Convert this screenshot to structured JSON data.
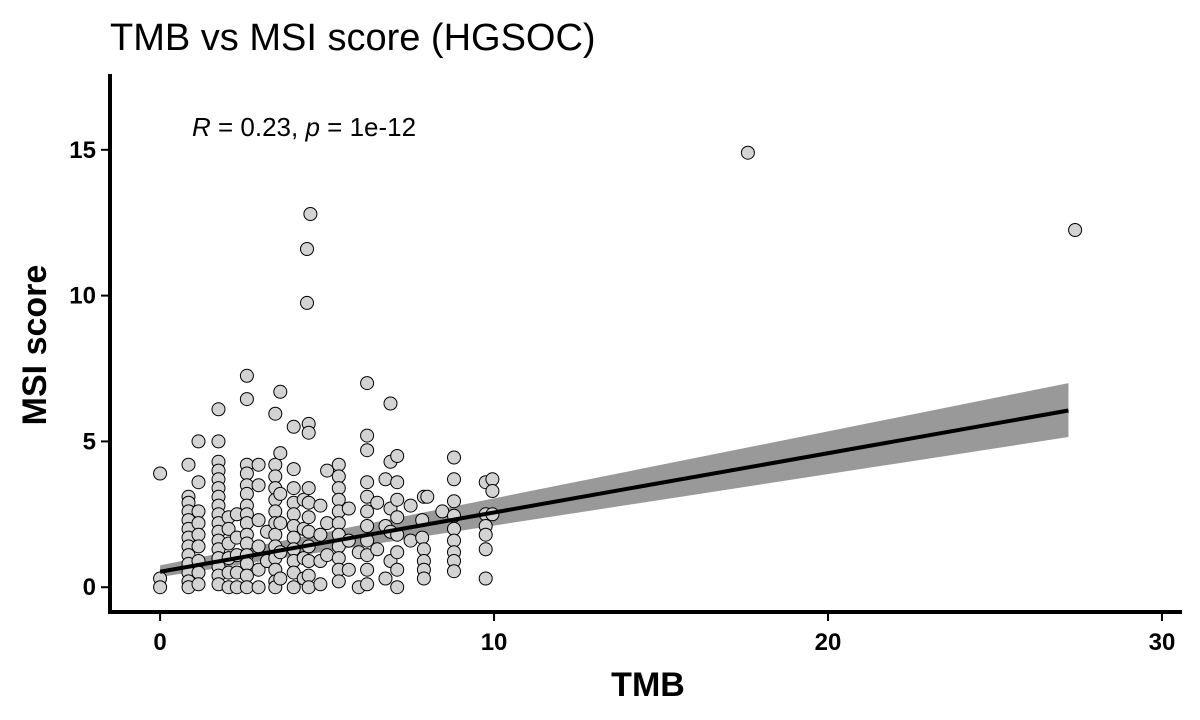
{
  "chart_data": {
    "type": "scatter",
    "title": "TMB vs MSI score (HGSOC)",
    "xlabel": "TMB",
    "ylabel": "MSI score",
    "xlim": [
      -1.5,
      30.6
    ],
    "ylim": [
      -0.85,
      17.6
    ],
    "x_ticks": [
      0,
      10,
      20,
      30
    ],
    "y_ticks": [
      0,
      5,
      10,
      15
    ],
    "annotation": {
      "r_symbol": "R",
      "r_text": " = 0.23, ",
      "p_symbol": "p",
      "p_text": " = 1e-12"
    },
    "colors": {
      "point_fill": "#d3d3d3",
      "point_stroke": "#000000",
      "fit_line": "#000000",
      "confidence_band": "#999999"
    },
    "regression": {
      "slope": 0.2033,
      "intercept": 0.53,
      "x_range": [
        0,
        27.2
      ],
      "ci_at_start": [
        0.35,
        0.75
      ],
      "ci_at_end": [
        5.15,
        7.0
      ]
    },
    "points": [
      [
        0,
        3.9
      ],
      [
        0,
        0.3
      ],
      [
        0,
        0
      ],
      [
        0.85,
        4.2
      ],
      [
        0.85,
        3.1
      ],
      [
        0.85,
        2.9
      ],
      [
        0.85,
        2.6
      ],
      [
        0.85,
        2.3
      ],
      [
        0.85,
        2.0
      ],
      [
        0.85,
        1.7
      ],
      [
        0.85,
        1.4
      ],
      [
        0.85,
        1.1
      ],
      [
        0.85,
        0.8
      ],
      [
        0.85,
        0.5
      ],
      [
        0.85,
        0.2
      ],
      [
        0.85,
        0
      ],
      [
        1.15,
        5.0
      ],
      [
        1.15,
        3.6
      ],
      [
        1.15,
        2.6
      ],
      [
        1.15,
        2.2
      ],
      [
        1.15,
        1.8
      ],
      [
        1.15,
        1.4
      ],
      [
        1.15,
        0.9
      ],
      [
        1.15,
        0.5
      ],
      [
        1.15,
        0.1
      ],
      [
        1.75,
        6.1
      ],
      [
        1.75,
        5.0
      ],
      [
        1.75,
        4.3
      ],
      [
        1.75,
        4.0
      ],
      [
        1.75,
        3.7
      ],
      [
        1.75,
        3.4
      ],
      [
        1.75,
        3.1
      ],
      [
        1.75,
        2.8
      ],
      [
        1.75,
        2.5
      ],
      [
        1.75,
        2.2
      ],
      [
        1.75,
        1.9
      ],
      [
        1.75,
        1.6
      ],
      [
        1.75,
        1.3
      ],
      [
        1.75,
        1.0
      ],
      [
        1.75,
        0.7
      ],
      [
        1.75,
        0.4
      ],
      [
        1.75,
        0.1
      ],
      [
        2.05,
        2.4
      ],
      [
        2.05,
        2.0
      ],
      [
        2.05,
        1.5
      ],
      [
        2.05,
        1.0
      ],
      [
        2.05,
        0.5
      ],
      [
        2.05,
        0
      ],
      [
        2.3,
        2.5
      ],
      [
        2.3,
        1.7
      ],
      [
        2.3,
        1.1
      ],
      [
        2.3,
        0.5
      ],
      [
        2.3,
        0
      ],
      [
        2.6,
        7.25
      ],
      [
        2.6,
        6.45
      ],
      [
        2.6,
        4.2
      ],
      [
        2.6,
        3.9
      ],
      [
        2.6,
        3.5
      ],
      [
        2.6,
        3.2
      ],
      [
        2.6,
        2.8
      ],
      [
        2.6,
        2.5
      ],
      [
        2.6,
        2.2
      ],
      [
        2.6,
        1.8
      ],
      [
        2.6,
        1.5
      ],
      [
        2.6,
        1.1
      ],
      [
        2.6,
        0.8
      ],
      [
        2.6,
        0.4
      ],
      [
        2.6,
        0
      ],
      [
        2.95,
        4.2
      ],
      [
        2.95,
        3.5
      ],
      [
        2.95,
        2.3
      ],
      [
        2.95,
        1.4
      ],
      [
        2.95,
        0.6
      ],
      [
        2.95,
        0
      ],
      [
        3.2,
        1.9
      ],
      [
        3.2,
        0.9
      ],
      [
        3.45,
        5.95
      ],
      [
        3.45,
        4.2
      ],
      [
        3.45,
        3.8
      ],
      [
        3.45,
        3.4
      ],
      [
        3.45,
        3.0
      ],
      [
        3.45,
        2.6
      ],
      [
        3.45,
        2.2
      ],
      [
        3.45,
        1.8
      ],
      [
        3.45,
        1.4
      ],
      [
        3.45,
        1.0
      ],
      [
        3.45,
        0.6
      ],
      [
        3.45,
        0.2
      ],
      [
        3.45,
        0
      ],
      [
        3.6,
        6.7
      ],
      [
        3.6,
        4.6
      ],
      [
        3.6,
        3.2
      ],
      [
        3.6,
        2.2
      ],
      [
        3.6,
        1.2
      ],
      [
        3.6,
        0.3
      ],
      [
        4.0,
        5.5
      ],
      [
        4.0,
        4.05
      ],
      [
        4.0,
        3.4
      ],
      [
        4.0,
        2.9
      ],
      [
        4.0,
        2.5
      ],
      [
        4.0,
        2.1
      ],
      [
        4.0,
        1.7
      ],
      [
        4.0,
        1.3
      ],
      [
        4.0,
        0.9
      ],
      [
        4.0,
        0.5
      ],
      [
        4.0,
        0
      ],
      [
        4.3,
        3.0
      ],
      [
        4.3,
        2.0
      ],
      [
        4.3,
        1.0
      ],
      [
        4.3,
        0.3
      ],
      [
        4.5,
        12.8
      ],
      [
        4.4,
        11.6
      ],
      [
        4.4,
        9.75
      ],
      [
        4.45,
        5.6
      ],
      [
        4.45,
        5.3
      ],
      [
        4.45,
        3.4
      ],
      [
        4.45,
        2.9
      ],
      [
        4.45,
        2.4
      ],
      [
        4.45,
        1.9
      ],
      [
        4.45,
        1.4
      ],
      [
        4.45,
        0.9
      ],
      [
        4.45,
        0.4
      ],
      [
        4.45,
        0
      ],
      [
        4.8,
        2.8
      ],
      [
        4.8,
        1.8
      ],
      [
        4.8,
        0.9
      ],
      [
        4.8,
        0.1
      ],
      [
        5.0,
        4.0
      ],
      [
        5.0,
        2.2
      ],
      [
        5.0,
        1.1
      ],
      [
        5.35,
        4.2
      ],
      [
        5.35,
        3.8
      ],
      [
        5.35,
        3.4
      ],
      [
        5.35,
        3.0
      ],
      [
        5.35,
        2.6
      ],
      [
        5.35,
        2.2
      ],
      [
        5.35,
        1.8
      ],
      [
        5.35,
        1.4
      ],
      [
        5.35,
        1.0
      ],
      [
        5.35,
        0.6
      ],
      [
        5.35,
        0.2
      ],
      [
        5.65,
        2.7
      ],
      [
        5.65,
        1.6
      ],
      [
        5.65,
        0.6
      ],
      [
        5.95,
        1.2
      ],
      [
        5.95,
        0
      ],
      [
        6.2,
        7.0
      ],
      [
        6.2,
        5.2
      ],
      [
        6.2,
        4.7
      ],
      [
        6.2,
        3.6
      ],
      [
        6.2,
        3.1
      ],
      [
        6.2,
        2.6
      ],
      [
        6.2,
        2.1
      ],
      [
        6.2,
        1.6
      ],
      [
        6.2,
        1.1
      ],
      [
        6.2,
        0.6
      ],
      [
        6.2,
        0.1
      ],
      [
        6.5,
        2.9
      ],
      [
        6.5,
        1.3
      ],
      [
        6.75,
        3.7
      ],
      [
        6.75,
        2.1
      ],
      [
        6.75,
        0.3
      ],
      [
        6.9,
        6.3
      ],
      [
        6.9,
        4.3
      ],
      [
        6.9,
        2.7
      ],
      [
        6.9,
        1.9
      ],
      [
        6.9,
        0.9
      ],
      [
        7.1,
        4.5
      ],
      [
        7.1,
        3.6
      ],
      [
        7.1,
        3.0
      ],
      [
        7.1,
        2.4
      ],
      [
        7.1,
        1.8
      ],
      [
        7.1,
        1.2
      ],
      [
        7.1,
        0.6
      ],
      [
        7.1,
        0
      ],
      [
        7.5,
        2.8
      ],
      [
        7.5,
        1.6
      ],
      [
        7.9,
        3.1
      ],
      [
        7.85,
        2.3
      ],
      [
        7.85,
        1.7
      ],
      [
        7.9,
        1.3
      ],
      [
        7.9,
        0.9
      ],
      [
        7.9,
        0.6
      ],
      [
        7.9,
        0.3
      ],
      [
        8.0,
        3.1
      ],
      [
        8.45,
        2.6
      ],
      [
        8.8,
        4.45
      ],
      [
        8.8,
        3.7
      ],
      [
        8.8,
        2.95
      ],
      [
        8.8,
        2.45
      ],
      [
        8.8,
        2.0
      ],
      [
        8.8,
        1.6
      ],
      [
        8.8,
        1.2
      ],
      [
        8.8,
        0.9
      ],
      [
        8.8,
        0.55
      ],
      [
        9.75,
        3.6
      ],
      [
        9.75,
        2.5
      ],
      [
        9.75,
        2.1
      ],
      [
        9.75,
        1.8
      ],
      [
        9.75,
        1.3
      ],
      [
        9.75,
        0.3
      ],
      [
        9.95,
        3.7
      ],
      [
        9.95,
        3.3
      ],
      [
        9.95,
        2.5
      ],
      [
        17.6,
        14.9
      ],
      [
        27.4,
        12.25
      ]
    ]
  }
}
